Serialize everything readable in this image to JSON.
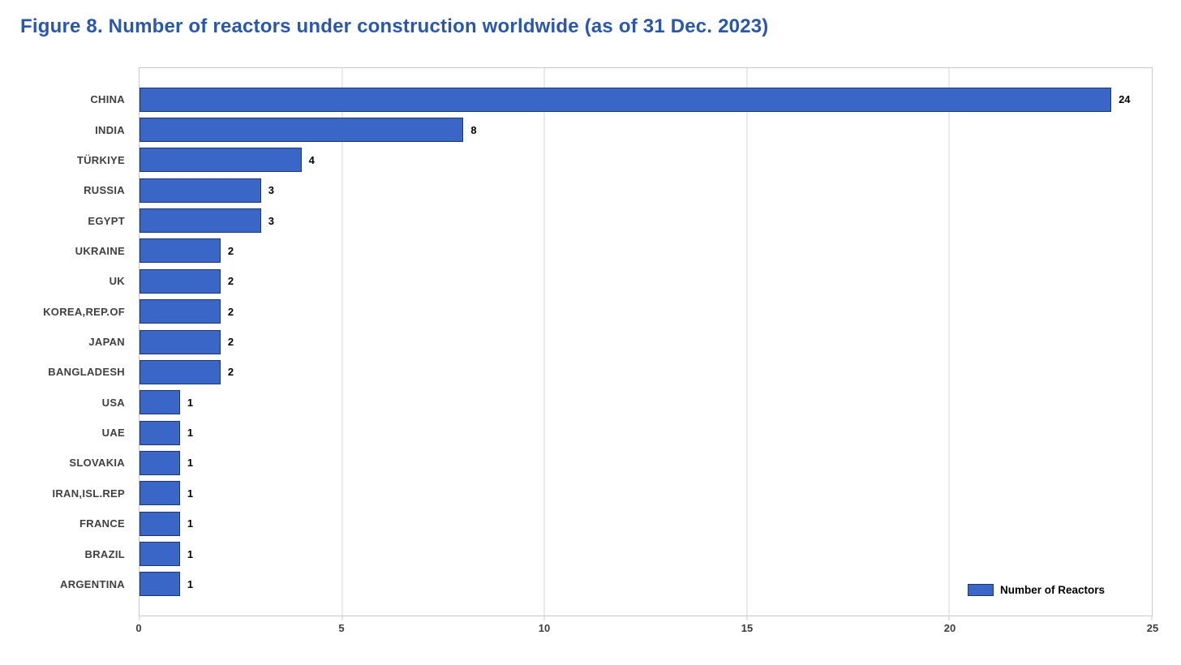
{
  "title": "Figure 8. Number of reactors under construction worldwide (as of 31 Dec. 2023)",
  "legend": {
    "label": "Number of Reactors"
  },
  "colors": {
    "title_blue": "#2a57a8",
    "bar_fill": "#3a66c8",
    "bar_border": "#1f3864",
    "grid": "#d6d6d6",
    "axis_frame": "#c9c9c9",
    "category_label": "#3f3f3f",
    "value_label": "#000000"
  },
  "chart_data": {
    "type": "bar",
    "orientation": "horizontal",
    "title": "Figure 8. Number of reactors under construction worldwide (as of 31 Dec. 2023)",
    "xlabel": "",
    "ylabel": "",
    "categories": [
      "CHINA",
      "INDIA",
      "TÜRKIYE",
      "RUSSIA",
      "EGYPT",
      "UKRAINE",
      "UK",
      "KOREA,REP.OF",
      "JAPAN",
      "BANGLADESH",
      "USA",
      "UAE",
      "SLOVAKIA",
      "IRAN,ISL.REP",
      "FRANCE",
      "BRAZIL",
      "ARGENTINA"
    ],
    "series": [
      {
        "name": "Number of Reactors",
        "values": [
          24,
          8,
          4,
          3,
          3,
          2,
          2,
          2,
          2,
          2,
          1,
          1,
          1,
          1,
          1,
          1,
          1
        ]
      }
    ],
    "xlim": [
      0,
      25
    ],
    "xticks": [
      0,
      5,
      10,
      15,
      20,
      25
    ],
    "grid": true,
    "data_labels": true,
    "legend_position": "bottom-right"
  }
}
